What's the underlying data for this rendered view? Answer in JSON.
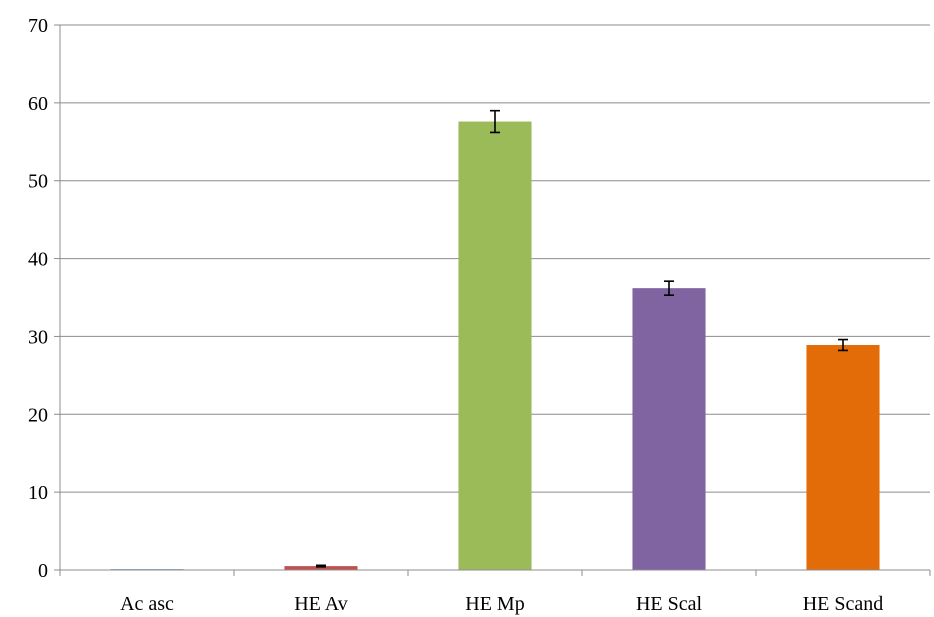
{
  "chart_data": {
    "type": "bar",
    "title": "",
    "xlabel": "",
    "ylabel": "",
    "categories": [
      "Ac asc",
      "HE Av",
      "HE Mp",
      "HE Scal",
      "HE Scand"
    ],
    "values": [
      0,
      0.5,
      57.6,
      36.2,
      28.9
    ],
    "errors": [
      0,
      0.1,
      1.4,
      0.9,
      0.7
    ],
    "colors": [
      "#4f81bd",
      "#c0504d",
      "#9bbb59",
      "#8064a2",
      "#e36c09"
    ],
    "ylim": [
      0,
      70
    ],
    "yticks": [
      0,
      10,
      20,
      30,
      40,
      50,
      60,
      70
    ],
    "grid": true,
    "legend": "none"
  }
}
